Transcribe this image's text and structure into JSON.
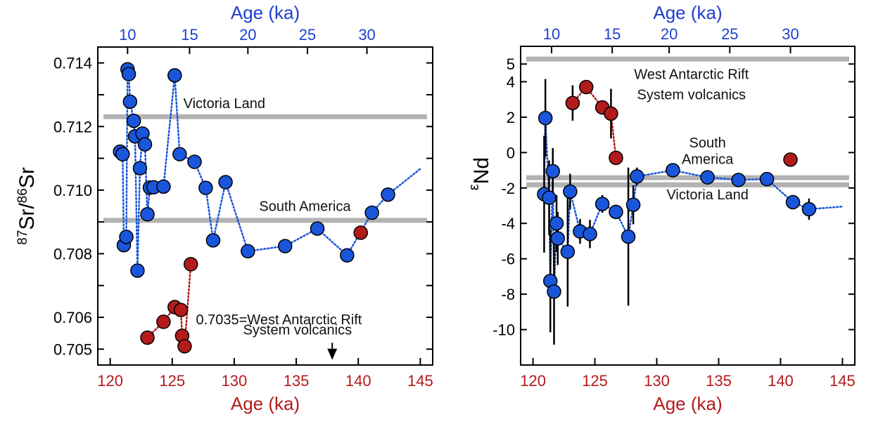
{
  "colors": {
    "blue_series": "#1a56db",
    "red_series": "#b31b1b",
    "top_axis_text": "#1f3fd1",
    "bottom_axis_text": "#b31b1b",
    "ref_band": "#b3b3b3",
    "frame": "#000000",
    "error_bar": "#000000"
  },
  "chart_data": [
    {
      "type": "scatter",
      "panel": "left",
      "ylabel": "87Sr/86Sr",
      "ylabel_parts": {
        "sup1": "87",
        "base1": "Sr/",
        "sup2": "86",
        "base2": "Sr"
      },
      "xlabel_bottom": "Age (ka)",
      "xlabel_top": "Age (ka)",
      "xlim_bottom": [
        119,
        146
      ],
      "xticks_bottom": [
        "120",
        "125",
        "130",
        "135",
        "140",
        "145"
      ],
      "xticks_bottom_values": [
        120,
        125,
        130,
        135,
        140,
        145
      ],
      "xticks_top": [
        "10",
        "15",
        "20",
        "25",
        "30"
      ],
      "xticks_top_bottomvals": [
        121.4,
        126.4,
        131.1,
        135.9,
        140.7
      ],
      "ylim": [
        0.7045,
        0.7145
      ],
      "yticks": [
        "0.705",
        "0.706",
        "0.707",
        "0.708",
        "0.709",
        "0.710",
        "0.711",
        "0.712",
        "0.713",
        "0.714"
      ],
      "yticks_values": [
        0.705,
        0.706,
        0.707,
        0.708,
        0.709,
        0.71,
        0.711,
        0.712,
        0.713,
        0.714
      ],
      "yticks_labeled": [
        0.705,
        0.706,
        0.708,
        0.71,
        0.712,
        0.714
      ],
      "reference_lines": [
        {
          "label": "Victoria Land",
          "y": 0.71231,
          "label_x": 129.2,
          "label_y": 0.71258
        },
        {
          "label": "South America",
          "y": 0.70905,
          "label_x": 135.7,
          "label_y": 0.70935
        }
      ],
      "annotation": {
        "lines": [
          "0.7035=West Antarctic Rift",
          "System volcanics"
        ],
        "arrow_x": 137.9,
        "arrow_from": 0.7052,
        "arrow_to": 0.70466
      },
      "series": [
        {
          "name": "blue",
          "color": "blue_series",
          "x": [
            120.8,
            121.0,
            121.1,
            121.3,
            121.4,
            121.5,
            121.6,
            121.9,
            122.0,
            122.2,
            122.4,
            122.6,
            122.8,
            123.0,
            123.2,
            123.5,
            124.3,
            125.2,
            125.6,
            126.8,
            127.7,
            128.3,
            129.3,
            131.1,
            134.1,
            136.7,
            139.1,
            141.1,
            142.4,
            145.0
          ],
          "y": [
            0.71121,
            0.71113,
            0.70827,
            0.70853,
            0.7138,
            0.71365,
            0.71278,
            0.71218,
            0.71169,
            0.70747,
            0.71069,
            0.71178,
            0.71144,
            0.70924,
            0.71008,
            0.71009,
            0.71011,
            0.71361,
            0.71113,
            0.71089,
            0.71007,
            0.70842,
            0.71025,
            0.70808,
            0.70824,
            0.70879,
            0.70795,
            0.70929,
            0.70986,
            0.71067
          ],
          "show_marker": [
            true,
            true,
            true,
            true,
            true,
            true,
            true,
            true,
            true,
            true,
            true,
            true,
            true,
            true,
            true,
            true,
            true,
            true,
            true,
            true,
            true,
            true,
            true,
            true,
            true,
            true,
            true,
            true,
            true,
            false
          ]
        },
        {
          "name": "red",
          "color": "red_series",
          "x": [
            123.0,
            124.3,
            125.2,
            125.7,
            125.8,
            126.0,
            126.5
          ],
          "y": [
            0.70536,
            0.70586,
            0.70632,
            0.70623,
            0.70542,
            0.70509,
            0.70767
          ]
        },
        {
          "name": "red-single",
          "color": "red_series",
          "x": [
            140.2
          ],
          "y": [
            0.70866
          ]
        }
      ]
    },
    {
      "type": "scatter",
      "panel": "right",
      "ylabel": "εNd",
      "ylabel_parts": {
        "base": "ε",
        "sub": "Nd"
      },
      "xlabel_bottom": "Age (ka)",
      "xlabel_top": "Age (ka)",
      "xlim_bottom": [
        119,
        146
      ],
      "xticks_bottom": [
        "120",
        "125",
        "130",
        "135",
        "140",
        "145"
      ],
      "xticks_bottom_values": [
        120,
        125,
        130,
        135,
        140,
        145
      ],
      "xticks_top": [
        "10",
        "15",
        "20",
        "25",
        "30"
      ],
      "xticks_top_bottomvals": [
        121.5,
        126.4,
        131.0,
        135.9,
        140.8
      ],
      "ylim": [
        -12,
        6
      ],
      "yticks": [
        "-10",
        "-8",
        "-6",
        "-4",
        "-2",
        "0",
        "2",
        "4"
      ],
      "yticks_values": [
        -10,
        -8,
        -6,
        -4,
        -2,
        0,
        2,
        4
      ],
      "yticks_labeled": [
        -10,
        -8,
        -6,
        -4,
        -2,
        0,
        2,
        4
      ],
      "extra_ytick_label": {
        "label": "5",
        "value": 5
      },
      "reference_lines": [
        {
          "label": "West Antarctic Rift",
          "y": 5.28,
          "label_x": 132.8,
          "label_y": 4.15
        },
        {
          "label": "System volcanics",
          "y": 5.28,
          "label_x": 132.8,
          "label_y": 3.0,
          "text_only": true
        },
        {
          "label": "South",
          "y": -1.42,
          "label_x": 134.1,
          "label_y": 0.3
        },
        {
          "label": "America",
          "y": -1.82,
          "label_x": 134.1,
          "label_y": -0.65
        },
        {
          "label": "Victoria Land",
          "y": -1.82,
          "label_x": 134.1,
          "label_y": -2.65,
          "text_only": true
        }
      ],
      "series": [
        {
          "name": "blue",
          "color": "blue_series",
          "x": [
            120.9,
            121.0,
            121.3,
            121.4,
            121.6,
            121.7,
            121.9,
            122.0,
            122.8,
            123.0,
            123.8,
            124.6,
            125.6,
            126.7,
            127.7,
            128.1,
            128.4,
            131.3,
            134.1,
            136.6,
            138.9,
            141.0,
            142.3,
            145.0
          ],
          "y": [
            -2.35,
            1.95,
            -2.55,
            -7.25,
            -1.05,
            -7.85,
            -4.0,
            -4.85,
            -5.6,
            -2.2,
            -4.45,
            -4.6,
            -2.9,
            -3.35,
            -4.75,
            -2.95,
            -1.35,
            -1.0,
            -1.4,
            -1.55,
            -1.5,
            -2.8,
            -3.2,
            -3.05
          ],
          "err": [
            3.3,
            2.2,
            2.1,
            2.9,
            1.3,
            3.0,
            1.6,
            1.5,
            3.1,
            1.0,
            0.7,
            0.8,
            0.5,
            0.0,
            3.9,
            1.1,
            0.5,
            0.0,
            0.0,
            0.0,
            0.0,
            0.0,
            0.6,
            0.0
          ],
          "show_marker": [
            true,
            true,
            true,
            true,
            true,
            true,
            true,
            true,
            true,
            true,
            true,
            true,
            true,
            true,
            true,
            true,
            true,
            true,
            true,
            true,
            true,
            true,
            true,
            false
          ]
        },
        {
          "name": "red",
          "color": "red_series",
          "x": [
            123.2,
            124.3,
            125.6,
            126.3,
            126.7
          ],
          "y": [
            2.8,
            3.7,
            2.55,
            2.2,
            -0.3
          ],
          "err": [
            1.0,
            0.0,
            0.0,
            1.4,
            0.0
          ]
        },
        {
          "name": "red-single",
          "color": "red_series",
          "x": [
            140.8
          ],
          "y": [
            -0.4
          ],
          "err": [
            0.0
          ]
        }
      ]
    }
  ]
}
